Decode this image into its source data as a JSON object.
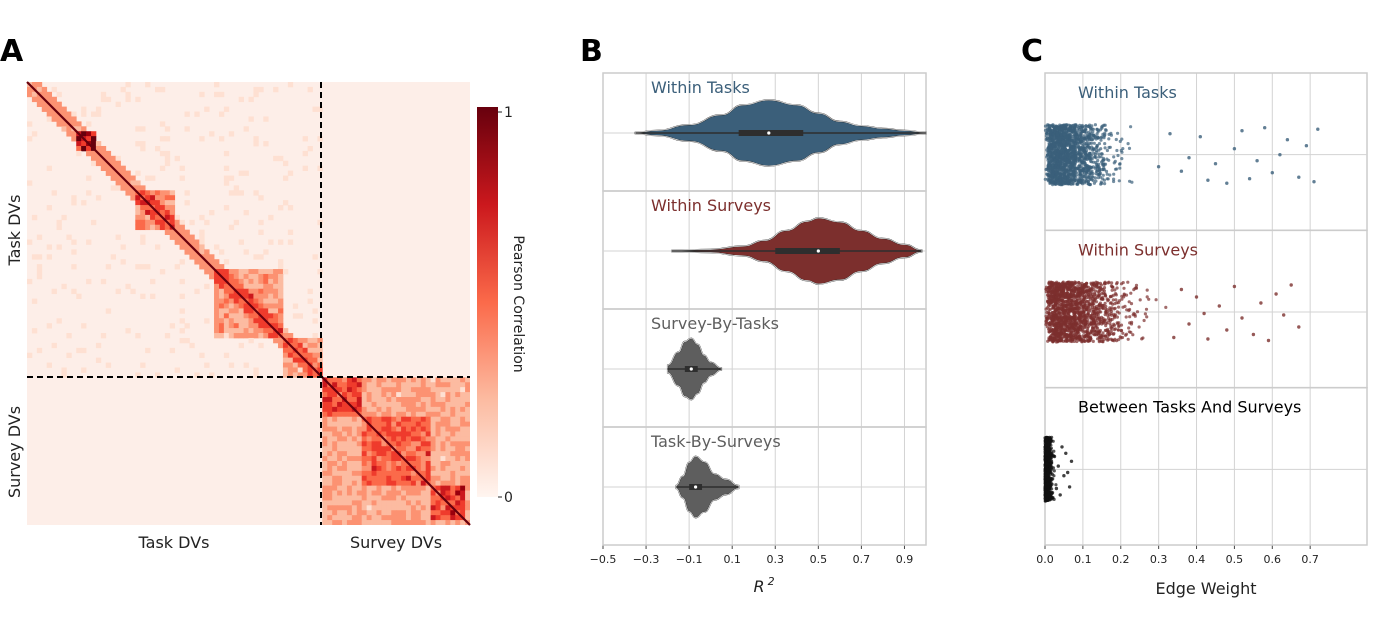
{
  "panels": {
    "a": "A",
    "b": "B",
    "c": "C"
  },
  "colors": {
    "tasks": "#3b5f7a",
    "surveys": "#7c2f2d",
    "between": "#5e5e5e",
    "black": "#111111"
  },
  "chart_data": [
    {
      "type": "heatmap",
      "panel": "A",
      "x_groups": [
        "Task DVs",
        "Survey DVs"
      ],
      "y_groups": [
        "Task DVs",
        "Survey DVs"
      ],
      "colorbar": {
        "label": "Pearson Correlation",
        "min": 0,
        "max": 1,
        "ticks": [
          "0",
          "1"
        ]
      },
      "divider_fraction": 0.67
    },
    {
      "type": "violin",
      "panel": "B",
      "xlabel_base": "R",
      "xlabel_sup": "2",
      "xlim": [
        -0.5,
        1.0
      ],
      "xticks": [
        -0.5,
        -0.3,
        -0.1,
        0.1,
        0.3,
        0.5,
        0.7,
        0.9
      ],
      "xtick_labels": [
        "−0.5",
        "−0.3",
        "−0.1",
        "0.1",
        "0.3",
        "0.5",
        "0.7",
        "0.9"
      ],
      "series": [
        {
          "name": "Within Tasks",
          "min": -0.35,
          "q1": 0.13,
          "median": 0.27,
          "q3": 0.43,
          "max": 1.0,
          "mode": 0.27,
          "width": 0.28,
          "shape": [
            [
              -0.35,
              0.02
            ],
            [
              -0.25,
              0.08
            ],
            [
              -0.1,
              0.25
            ],
            [
              0.05,
              0.55
            ],
            [
              0.15,
              0.85
            ],
            [
              0.27,
              1.0
            ],
            [
              0.4,
              0.85
            ],
            [
              0.5,
              0.6
            ],
            [
              0.6,
              0.35
            ],
            [
              0.7,
              0.22
            ],
            [
              0.8,
              0.14
            ],
            [
              0.9,
              0.08
            ],
            [
              1.0,
              0.02
            ]
          ]
        },
        {
          "name": "Within Surveys",
          "min": -0.18,
          "q1": 0.3,
          "median": 0.5,
          "q3": 0.6,
          "max": 0.98,
          "mode": 0.5,
          "width": 0.28,
          "shape": [
            [
              -0.18,
              0.02
            ],
            [
              0.0,
              0.05
            ],
            [
              0.15,
              0.15
            ],
            [
              0.25,
              0.32
            ],
            [
              0.35,
              0.62
            ],
            [
              0.45,
              0.9
            ],
            [
              0.5,
              1.0
            ],
            [
              0.6,
              0.88
            ],
            [
              0.7,
              0.62
            ],
            [
              0.8,
              0.38
            ],
            [
              0.9,
              0.2
            ],
            [
              0.98,
              0.03
            ]
          ]
        },
        {
          "name": "Survey-By-Tasks",
          "min": -0.2,
          "q1": -0.12,
          "median": -0.09,
          "q3": -0.06,
          "max": 0.05,
          "mode": -0.09,
          "width": 0.26,
          "shape": [
            [
              -0.2,
              0.12
            ],
            [
              -0.15,
              0.55
            ],
            [
              -0.12,
              0.9
            ],
            [
              -0.09,
              1.0
            ],
            [
              -0.06,
              0.8
            ],
            [
              -0.03,
              0.45
            ],
            [
              0.0,
              0.22
            ],
            [
              0.05,
              0.03
            ]
          ]
        },
        {
          "name": "Task-By-Surveys",
          "min": -0.16,
          "q1": -0.1,
          "median": -0.07,
          "q3": -0.04,
          "max": 0.13,
          "mode": -0.07,
          "width": 0.26,
          "shape": [
            [
              -0.16,
              0.05
            ],
            [
              -0.13,
              0.35
            ],
            [
              -0.1,
              0.8
            ],
            [
              -0.07,
              1.0
            ],
            [
              -0.03,
              0.82
            ],
            [
              0.02,
              0.42
            ],
            [
              0.07,
              0.25
            ],
            [
              0.13,
              0.05
            ]
          ]
        }
      ]
    },
    {
      "type": "scatter",
      "panel": "C",
      "xlabel": "Edge Weight",
      "xlim": [
        0.0,
        0.85
      ],
      "xticks": [
        0.0,
        0.1,
        0.2,
        0.3,
        0.4,
        0.5,
        0.6,
        0.7
      ],
      "xtick_labels": [
        "0.0",
        "0.1",
        "0.2",
        "0.3",
        "0.4",
        "0.5",
        "0.6",
        "0.7"
      ],
      "series": [
        {
          "name": "Within Tasks",
          "sample_points": [
            [
              0.36,
              0.55
            ],
            [
              0.41,
              -0.6
            ],
            [
              0.45,
              0.3
            ],
            [
              0.5,
              -0.2
            ],
            [
              0.54,
              0.8
            ],
            [
              0.56,
              0.2
            ],
            [
              0.58,
              -0.9
            ],
            [
              0.6,
              0.6
            ],
            [
              0.62,
              0.0
            ],
            [
              0.64,
              -0.5
            ],
            [
              0.67,
              0.75
            ],
            [
              0.69,
              -0.3
            ],
            [
              0.71,
              0.9
            ],
            [
              0.72,
              -0.85
            ],
            [
              0.48,
              0.95
            ],
            [
              0.52,
              -0.8
            ],
            [
              0.38,
              0.1
            ],
            [
              0.43,
              0.85
            ],
            [
              0.33,
              -0.7
            ],
            [
              0.3,
              0.4
            ]
          ]
        },
        {
          "name": "Within Surveys",
          "sample_points": [
            [
              0.38,
              0.4
            ],
            [
              0.4,
              -0.5
            ],
            [
              0.43,
              0.9
            ],
            [
              0.46,
              -0.2
            ],
            [
              0.48,
              0.6
            ],
            [
              0.5,
              -0.85
            ],
            [
              0.52,
              0.2
            ],
            [
              0.55,
              0.75
            ],
            [
              0.57,
              -0.3
            ],
            [
              0.59,
              0.95
            ],
            [
              0.61,
              -0.6
            ],
            [
              0.63,
              0.1
            ],
            [
              0.65,
              -0.9
            ],
            [
              0.67,
              0.5
            ],
            [
              0.36,
              -0.75
            ],
            [
              0.34,
              0.85
            ],
            [
              0.42,
              0.05
            ]
          ]
        },
        {
          "name": "Between Tasks And Surveys",
          "sample_points": [
            [
              0.02,
              0.3
            ],
            [
              0.025,
              -0.4
            ],
            [
              0.03,
              0.6
            ],
            [
              0.035,
              -0.1
            ],
            [
              0.04,
              0.8
            ],
            [
              0.045,
              -0.7
            ],
            [
              0.05,
              0.2
            ],
            [
              0.055,
              -0.5
            ],
            [
              0.06,
              0.1
            ],
            [
              0.065,
              0.55
            ],
            [
              0.07,
              -0.25
            ]
          ]
        }
      ]
    }
  ]
}
